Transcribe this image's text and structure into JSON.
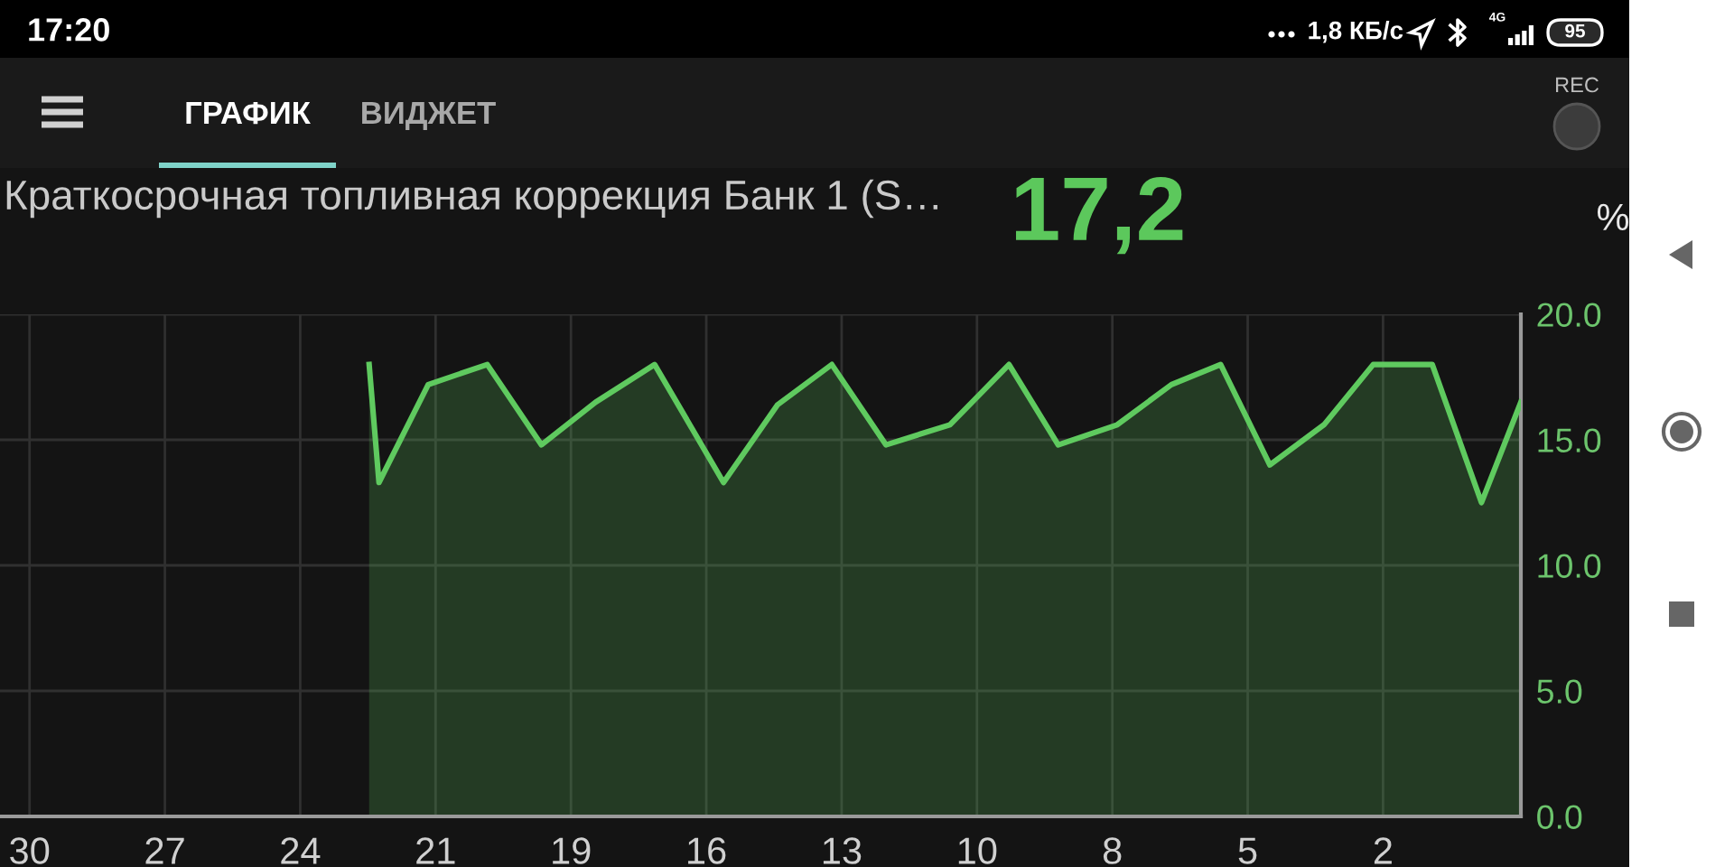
{
  "chart_data": {
    "type": "area",
    "title": "Краткосрочная топливная коррекция Банк 1 (S…",
    "ylabel": "%",
    "annotations": [
      "17:20",
      "1,8 КБ/с",
      "4G",
      "95",
      "ГРАФИК",
      "ВИДЖЕТ",
      "REC",
      "17,2"
    ],
    "x": [
      22.7,
      22.5,
      21.5,
      20.3,
      19.2,
      18.1,
      16.9,
      15.5,
      14.4,
      13.3,
      12.2,
      10.9,
      9.7,
      8.7,
      7.5,
      6.4,
      5.4,
      4.4,
      3.3,
      2.3,
      1.1,
      0.1,
      -0.7
    ],
    "series": [
      {
        "color": "#5fca5f",
        "values": [
          18.0,
          13.3,
          17.2,
          18.0,
          14.8,
          16.5,
          18.0,
          13.3,
          16.4,
          18.0,
          14.8,
          15.6,
          18.0,
          14.8,
          15.6,
          17.2,
          18.0,
          14.0,
          15.6,
          18.0,
          18.0,
          12.5,
          16.5
        ]
      }
    ],
    "xlim": [
      30.2,
      -0.7
    ],
    "xticks": [
      {
        "value": 29.6,
        "label": "30"
      },
      {
        "value": 26.85,
        "label": "27"
      },
      {
        "value": 24.1,
        "label": "24"
      },
      {
        "value": 21.35,
        "label": "21"
      },
      {
        "value": 18.6,
        "label": "19"
      },
      {
        "value": 15.85,
        "label": "16"
      },
      {
        "value": 13.1,
        "label": "13"
      },
      {
        "value": 10.35,
        "label": "10"
      },
      {
        "value": 7.6,
        "label": "8"
      },
      {
        "value": 4.85,
        "label": "5"
      },
      {
        "value": 2.1,
        "label": "2"
      }
    ],
    "ylim": [
      0,
      20
    ],
    "yticks": [
      {
        "value": 0,
        "label": "0.0"
      },
      {
        "value": 5,
        "label": "5.0"
      },
      {
        "value": 10,
        "label": "10.0"
      },
      {
        "value": 15,
        "label": "15.0"
      },
      {
        "value": 20,
        "label": "20.0"
      }
    ],
    "grid": true
  }
}
